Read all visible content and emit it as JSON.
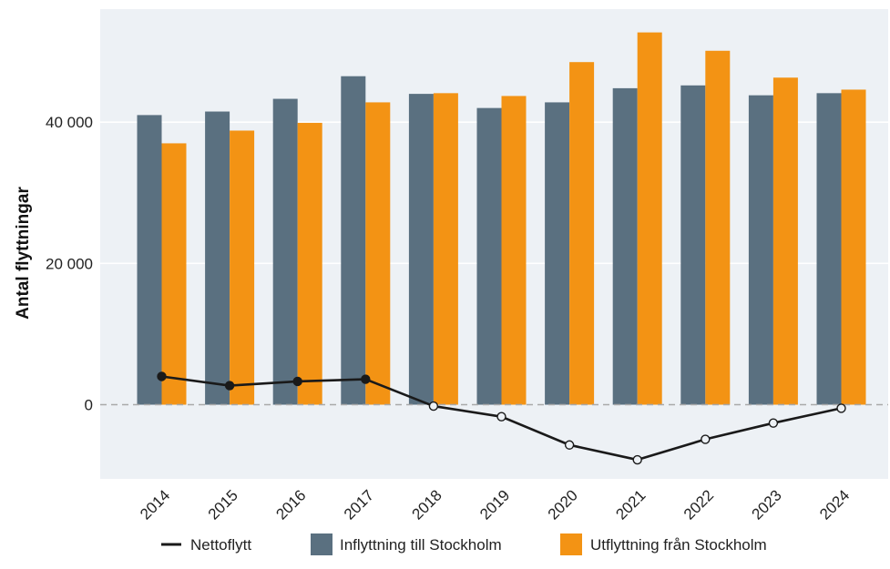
{
  "chart_data": {
    "type": "bar",
    "categories": [
      "2014",
      "2015",
      "2016",
      "2017",
      "2018",
      "2019",
      "2020",
      "2021",
      "2022",
      "2023",
      "2024"
    ],
    "series": [
      {
        "name": "Inflyttning till Stockholm",
        "kind": "bar",
        "color": "#5a7080",
        "values": [
          41000,
          41500,
          43300,
          46500,
          44000,
          42000,
          42800,
          44800,
          45200,
          43800,
          44100
        ]
      },
      {
        "name": "Utflyttning från Stockholm",
        "kind": "bar",
        "color": "#f39314",
        "values": [
          37000,
          38800,
          39900,
          42800,
          44100,
          43700,
          48500,
          52700,
          50100,
          46300,
          44600
        ]
      },
      {
        "name": "Nettoflytt",
        "kind": "line",
        "color": "#1a1a1a",
        "values": [
          4000,
          2700,
          3300,
          3600,
          -200,
          -1700,
          -5700,
          -7800,
          -4900,
          -2600,
          -500
        ]
      }
    ],
    "ylabel": "Antal flyttningar",
    "xlabel": "",
    "ylim": [
      -10500,
      56000
    ],
    "yticks": [
      0,
      20000,
      40000
    ],
    "ytick_labels": [
      "0",
      "20 000",
      "40 000"
    ],
    "zero_line": "dashed",
    "grid": true,
    "legend": "bottom",
    "legend_order": [
      "Nettoflytt",
      "Inflyttning till Stockholm",
      "Utflyttning från Stockholm"
    ],
    "background": "#edf1f5"
  }
}
